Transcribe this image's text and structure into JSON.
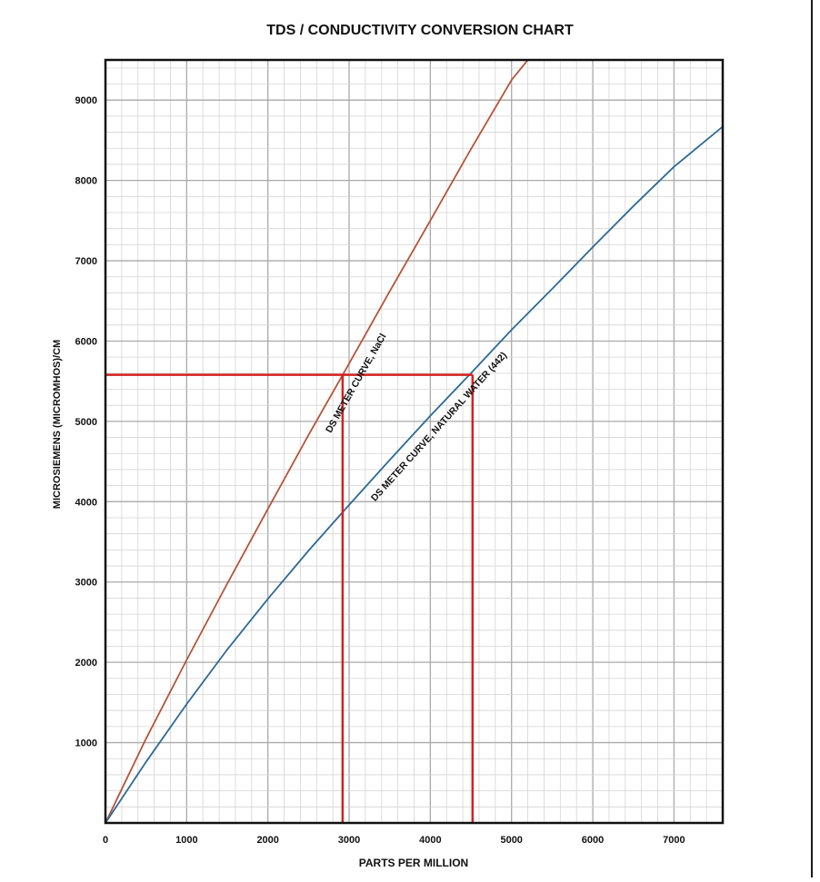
{
  "chart_data": {
    "type": "line",
    "title": "TDS / CONDUCTIVITY CONVERSION CHART",
    "xlabel": "PARTS PER MILLION",
    "ylabel": "MICROSIEMENS (MICROMHOS)/CM",
    "xlim": [
      0,
      7600
    ],
    "ylim": [
      0,
      9500
    ],
    "x_ticks": [
      0,
      1000,
      2000,
      3000,
      4000,
      5000,
      6000,
      7000
    ],
    "x_tick_labels": [
      "0",
      "1000",
      "2000",
      "3000",
      "4000",
      "5000",
      "6000",
      "7000"
    ],
    "y_ticks": [
      1000,
      2000,
      3000,
      4000,
      5000,
      6000,
      7000,
      8000,
      9000
    ],
    "y_tick_labels": [
      "1000",
      "2000",
      "3000",
      "4000",
      "5000",
      "6000",
      "7000",
      "8000",
      "9000"
    ],
    "grid": true,
    "grid_major_step": 1000,
    "grid_minor_step": 200,
    "series": [
      {
        "name": "DS METER CURVE, NaCl",
        "color": "#b5543a",
        "x": [
          0,
          500,
          1000,
          1500,
          2000,
          2500,
          3000,
          3500,
          4000,
          4500,
          5000,
          5200
        ],
        "y": [
          0,
          1050,
          2030,
          2980,
          3910,
          4830,
          5720,
          6620,
          7500,
          8390,
          9250,
          9500
        ]
      },
      {
        "name": "DS METER CURVE, NATURAL WATER (442)",
        "color": "#2e6a94",
        "x": [
          0,
          500,
          1000,
          1500,
          2000,
          2500,
          3000,
          3500,
          4000,
          4500,
          5000,
          5500,
          6000,
          6500,
          7000,
          7600
        ],
        "y": [
          0,
          760,
          1480,
          2160,
          2790,
          3390,
          3960,
          4520,
          5070,
          5600,
          6140,
          6650,
          7170,
          7680,
          8170,
          8670
        ]
      }
    ],
    "annotations": [
      {
        "text": "DS METER CURVE, NaCl",
        "series": 0
      },
      {
        "text": "DS METER CURVE, NATURAL WATER (442)",
        "series": 1
      }
    ],
    "reference_lines": {
      "color": "#d42020",
      "y": 5580,
      "x": [
        2920,
        4520
      ]
    }
  }
}
